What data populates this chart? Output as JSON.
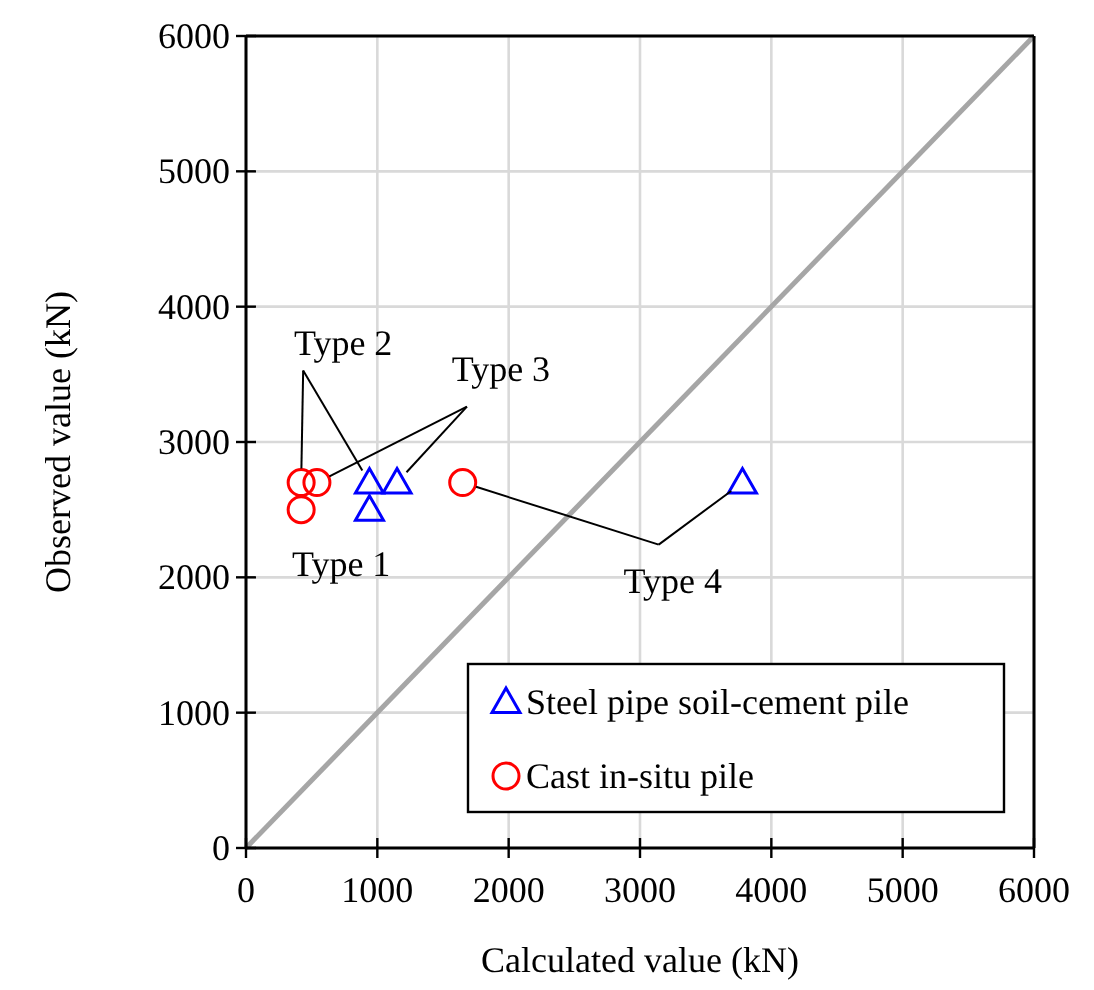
{
  "chart_data": {
    "type": "scatter",
    "xlabel": "Calculated value (kN)",
    "ylabel": "Observed value (kN)",
    "xlim": [
      0,
      6000
    ],
    "ylim": [
      0,
      6000
    ],
    "xticks": [
      0,
      1000,
      2000,
      3000,
      4000,
      5000,
      6000
    ],
    "yticks": [
      0,
      1000,
      2000,
      3000,
      4000,
      5000,
      6000
    ],
    "grid": true,
    "legend": "bottom right",
    "series": [
      {
        "name": "Steel pipe soil-cement pile",
        "color": "#0000ff",
        "marker": "triangle",
        "x": [
          940,
          940,
          1150,
          3780
        ],
        "values": [
          2700,
          2500,
          2700,
          2700
        ]
      },
      {
        "name": "Cast in-situ pile",
        "color": "#ff0000",
        "marker": "circle",
        "x": [
          420,
          420,
          540,
          1650
        ],
        "values": [
          2700,
          2500,
          2700,
          2700
        ]
      },
      {
        "type": "line",
        "color": "#a6a6a6",
        "marker": "none",
        "x": [
          0,
          6000
        ],
        "values": [
          0,
          6000
        ]
      }
    ],
    "annotations": [
      {
        "text": "Type 1",
        "x": 420,
        "y": 2500
      },
      {
        "text": "Type 2",
        "x": 420,
        "y": 2700
      },
      {
        "text": "Type 3",
        "x": 540,
        "y": 2700
      },
      {
        "text": "Type 4",
        "x": 1650,
        "y": 2700
      }
    ]
  }
}
